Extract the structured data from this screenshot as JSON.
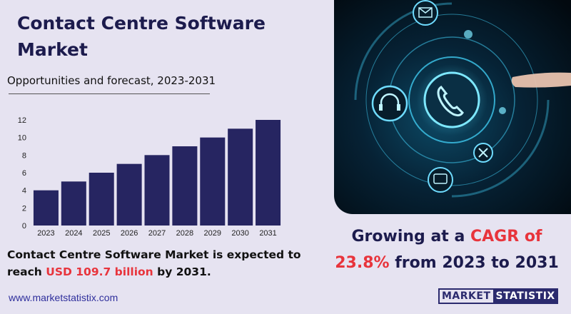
{
  "header": {
    "title": "Contact Centre Software Market",
    "subtitle": "Opportunities and forecast, 2023-2031"
  },
  "statement": {
    "part1": "Contact Centre Software Market is expected to reach ",
    "highlight": "USD 109.7 billion",
    "part2": " by 2031."
  },
  "cagr": {
    "part1": "Growing at a ",
    "highlight1": "CAGR of",
    "highlight2": "23.8%",
    "part2": " from 2023 to 2031"
  },
  "footer": {
    "url": "www.marketstatistix.com",
    "logo_left": "MARKET",
    "logo_right": "STATISTIX"
  },
  "photo": {
    "icons": [
      "envelope-icon",
      "phone-icon",
      "headset-icon",
      "tools-icon",
      "chat-icon"
    ]
  },
  "colors": {
    "background": "#e6e3f1",
    "bar": "#262561",
    "accent_red": "#e8343c",
    "title": "#1c1b4d"
  },
  "chart_data": {
    "type": "bar",
    "categories": [
      "2023",
      "2024",
      "2025",
      "2026",
      "2027",
      "2028",
      "2029",
      "2030",
      "2031"
    ],
    "values": [
      4,
      5,
      6,
      7,
      8,
      9,
      10,
      11,
      12
    ],
    "yticks": [
      0,
      2,
      4,
      6,
      8,
      10,
      12
    ],
    "ylim": [
      0,
      12
    ],
    "grid": false,
    "title": "",
    "xlabel": "",
    "ylabel": ""
  }
}
